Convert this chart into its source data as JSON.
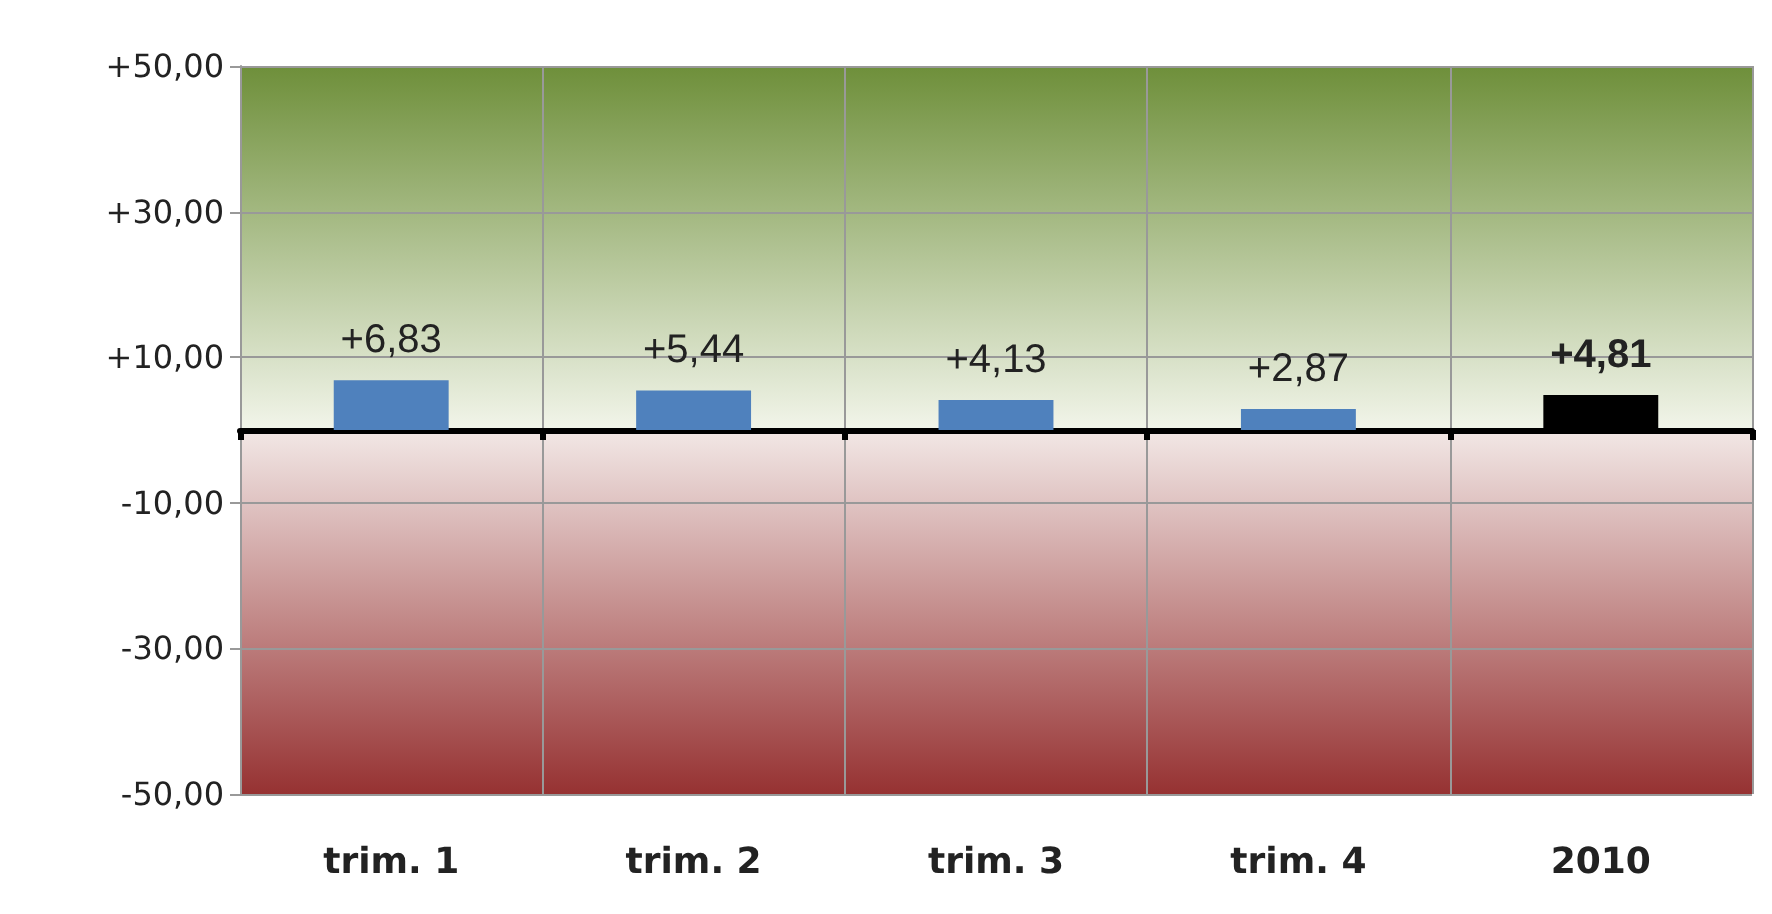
{
  "chart_data": {
    "type": "bar",
    "categories": [
      "trim. 1",
      "trim. 2",
      "trim. 3",
      "trim. 4",
      "2010"
    ],
    "values": [
      6.83,
      5.44,
      4.13,
      2.87,
      4.81
    ],
    "colors": [
      "#4f81bd",
      "#4f81bd",
      "#4f81bd",
      "#4f81bd",
      "#000000"
    ],
    "value_labels": [
      "+6,83",
      "+5,44",
      "+4,13",
      "+2,87",
      "+4,81"
    ],
    "ylim": [
      -50,
      50
    ],
    "yticks": [
      {
        "value": -50,
        "label": "-50,00"
      },
      {
        "value": -30,
        "label": "-30,00"
      },
      {
        "value": -10,
        "label": "-10,00"
      },
      {
        "value": 10,
        "label": "+10,00"
      },
      {
        "value": 30,
        "label": "+30,00"
      },
      {
        "value": 50,
        "label": "+50,00"
      }
    ],
    "bands": [
      {
        "axis": "y",
        "from": 0,
        "to": 50,
        "color": "#6e8f3a"
      },
      {
        "axis": "y",
        "from": -50,
        "to": 0,
        "color": "#963232"
      }
    ],
    "grid": true
  }
}
